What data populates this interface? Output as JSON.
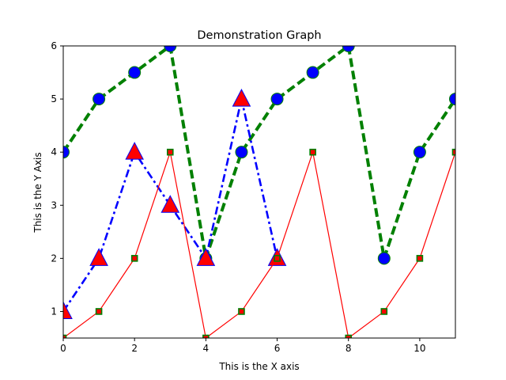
{
  "chart_data": {
    "type": "line",
    "title": "Demonstration Graph",
    "xlabel": "This is the X axis",
    "ylabel": "This is the Y Axis",
    "xlim": [
      0,
      11
    ],
    "ylim": [
      0.5,
      6
    ],
    "xticks": [
      0,
      2,
      4,
      6,
      8,
      10
    ],
    "yticks": [
      1,
      2,
      3,
      4,
      5,
      6
    ],
    "grid": false,
    "series": [
      {
        "x": [
          0,
          1,
          2,
          3,
          4,
          5,
          6,
          7,
          8,
          9,
          10,
          11
        ],
        "y": [
          4,
          5,
          5.5,
          6,
          2,
          4,
          5,
          5.5,
          6,
          2,
          4,
          5
        ],
        "color": "#008000",
        "line_style": "dashed",
        "marker": "circle",
        "marker_face": "#0000ff",
        "marker_edge": "#008000"
      },
      {
        "x": [
          0,
          1,
          2,
          3,
          4,
          5,
          6
        ],
        "y": [
          1,
          2,
          4,
          3,
          2,
          5,
          2
        ],
        "color": "#0000ff",
        "line_style": "dashdot",
        "marker": "triangle",
        "marker_face": "#ff0000",
        "marker_edge": "#0000ff"
      },
      {
        "x": [
          0,
          1,
          2,
          3,
          4,
          5,
          6,
          7,
          8,
          9,
          10,
          11
        ],
        "y": [
          0.5,
          1,
          2,
          4,
          0.5,
          1,
          2,
          4,
          0.5,
          1,
          2,
          4
        ],
        "color": "#ff0000",
        "line_style": "solid",
        "marker": "square",
        "marker_face": "#ff0000",
        "marker_edge": "#008000"
      }
    ]
  }
}
